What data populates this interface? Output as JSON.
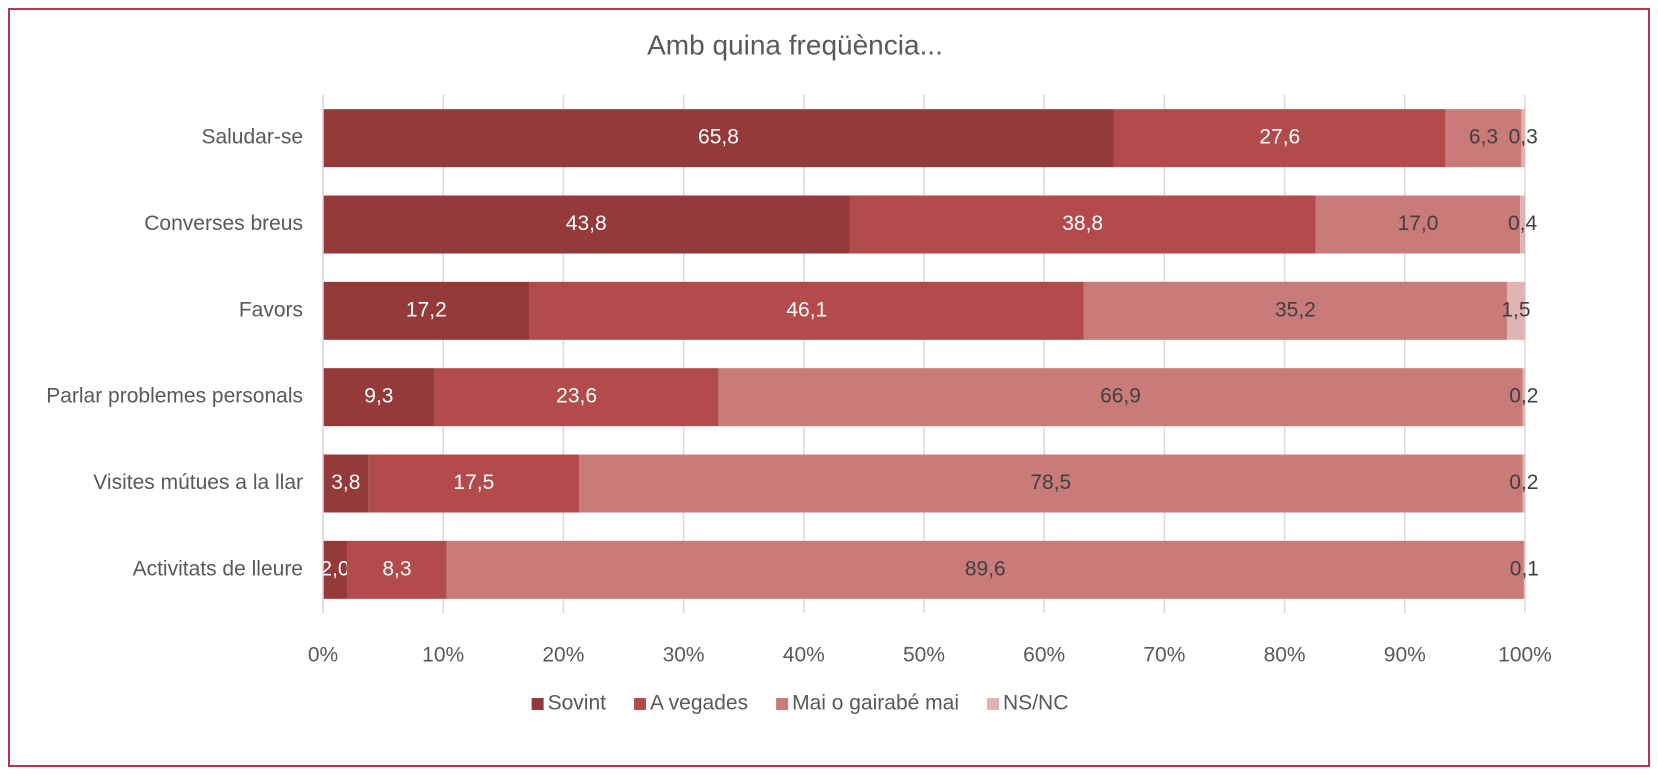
{
  "chart_data": {
    "type": "stacked_barh",
    "title": "Amb quina freqüència...",
    "categories": [
      "Saludar-se",
      "Converses breus",
      "Favors",
      "Parlar problemes personals",
      "Visites mútues a la llar",
      "Activitats de lleure"
    ],
    "series": [
      {
        "name": "Sovint",
        "color": "#953a3a",
        "label_color": "#ffffff",
        "values": [
          65.8,
          43.8,
          17.2,
          9.3,
          3.8,
          2.0
        ],
        "value_labels": [
          "65,8",
          "43,8",
          "17,2",
          "9,3",
          "3,8",
          "2,0"
        ]
      },
      {
        "name": "A vegades",
        "color": "#b34b4a",
        "label_color": "#ffffff",
        "values": [
          27.6,
          38.8,
          46.1,
          23.6,
          17.5,
          8.3
        ],
        "value_labels": [
          "27,6",
          "38,8",
          "46,1",
          "23,6",
          "17,5",
          "8,3"
        ]
      },
      {
        "name": "Mai o gairabé mai",
        "color": "#c97b79",
        "label_color": "#404040",
        "values": [
          6.3,
          17.0,
          35.2,
          66.9,
          78.5,
          89.6
        ],
        "value_labels": [
          "6,3",
          "17,0",
          "35,2",
          "66,9",
          "78,5",
          "89,6"
        ]
      },
      {
        "name": "NS/NC",
        "color": "#e0b4b3",
        "label_color": "#404040",
        "values": [
          0.3,
          0.4,
          1.5,
          0.2,
          0.2,
          0.1
        ],
        "value_labels": [
          "0,3",
          "0,4",
          "1,5",
          "0,2",
          "0,2",
          "0,1"
        ]
      }
    ],
    "xlim": [
      0,
      100
    ],
    "xticks": [
      {
        "value": 0,
        "label": "0%"
      },
      {
        "value": 10,
        "label": "10%"
      },
      {
        "value": 20,
        "label": "20%"
      },
      {
        "value": 30,
        "label": "30%"
      },
      {
        "value": 40,
        "label": "40%"
      },
      {
        "value": 50,
        "label": "50%"
      },
      {
        "value": 60,
        "label": "60%"
      },
      {
        "value": 70,
        "label": "70%"
      },
      {
        "value": 80,
        "label": "80%"
      },
      {
        "value": 90,
        "label": "90%"
      },
      {
        "value": 100,
        "label": "100%"
      }
    ],
    "grid": true,
    "legend": "bottom"
  }
}
